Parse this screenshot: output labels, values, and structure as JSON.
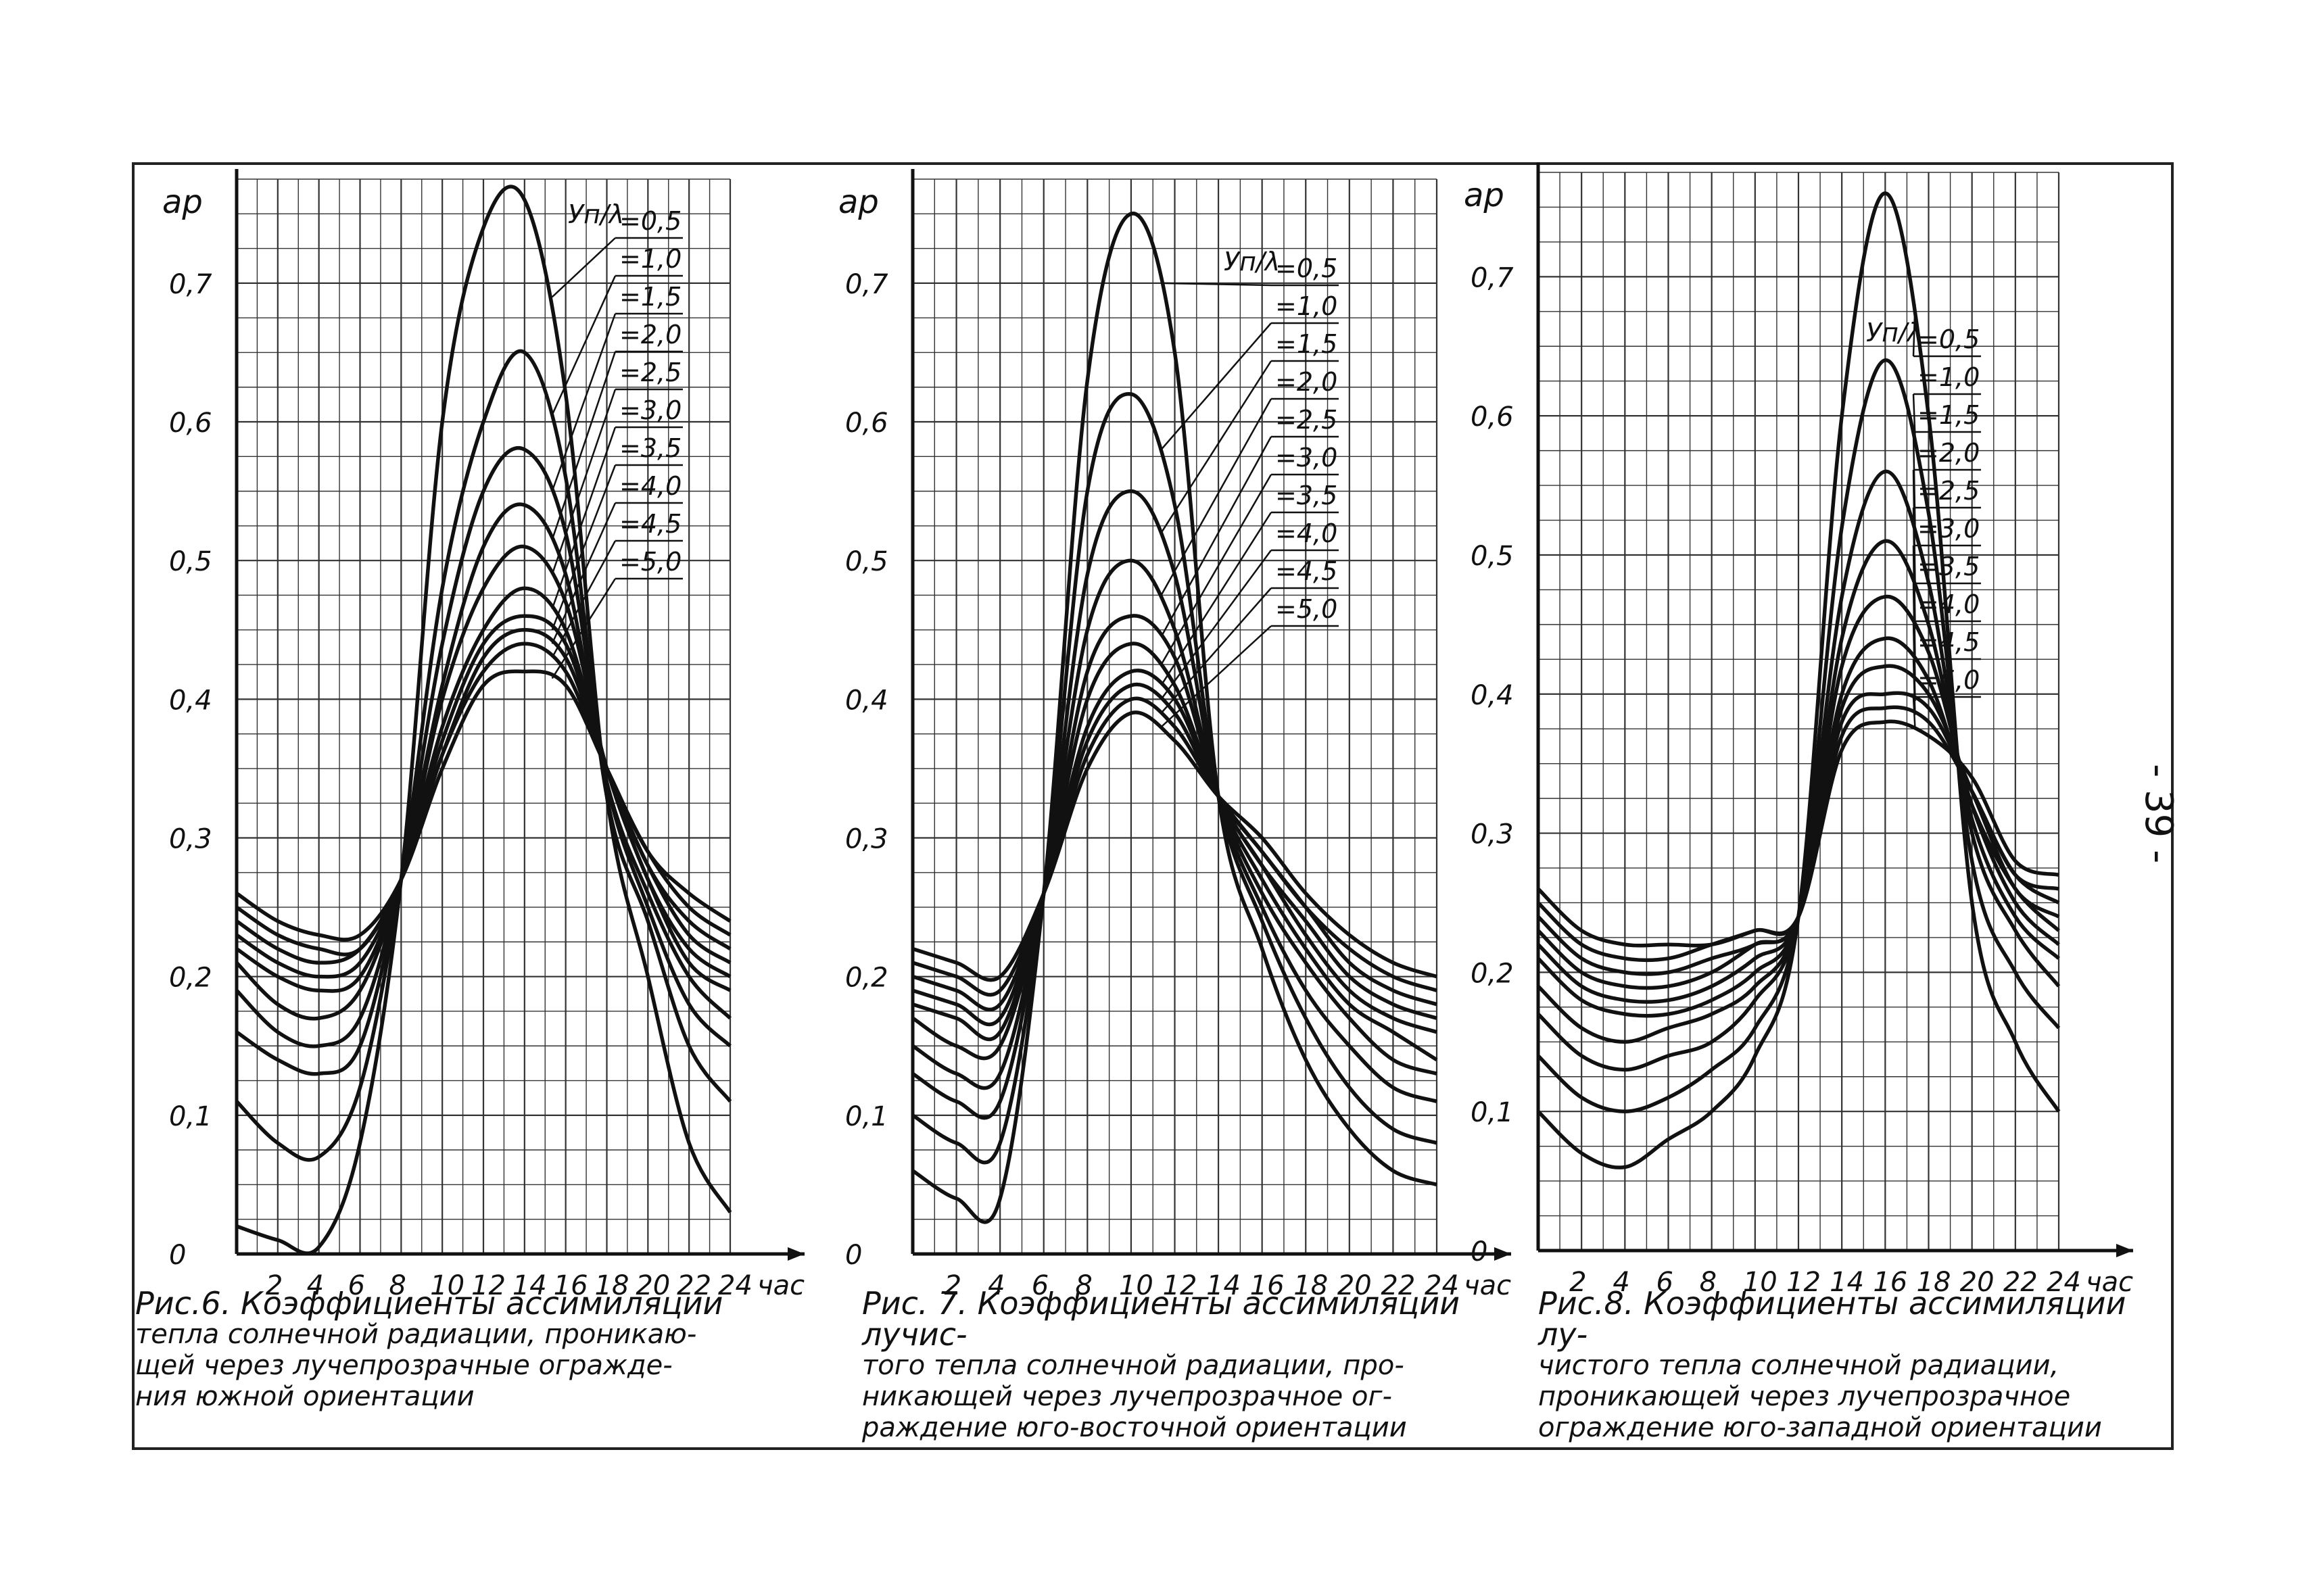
{
  "page_number": "- 39 -",
  "charts_common": {
    "y_ticks": [
      "0",
      "0,1",
      "0,2",
      "0,3",
      "0,4",
      "0,5",
      "0,6",
      "0,7"
    ],
    "x_ticks": [
      "2",
      "4",
      "6",
      "8",
      "10",
      "12",
      "14",
      "16",
      "18",
      "20",
      "22",
      "24"
    ],
    "x_unit": "час",
    "legend_symbol": "Уп/λ",
    "legend_labels": [
      "=0,5",
      "=1,0",
      "=1,5",
      "=2,0",
      "=2,5",
      "=3,0",
      "=3,5",
      "=4,0",
      "=4,5",
      "=5,0"
    ]
  },
  "chart_data": [
    {
      "type": "line",
      "caption_title": "Рис.6. Коэффициенты ассимиляции",
      "caption_lines": [
        "тепла солнечной радиации, проникаю-",
        "щей через лучепрозрачные огражде-",
        "ния южной ориентации"
      ],
      "ylabel": "ар",
      "x_unit": "час",
      "xlim": [
        0,
        24
      ],
      "ylim": [
        0,
        0.75
      ],
      "grid": true,
      "legend_position": "top-right",
      "x": [
        0,
        2,
        4,
        6,
        8,
        10,
        12,
        14,
        16,
        18,
        20,
        22,
        24
      ],
      "series": [
        {
          "name": "=0,5",
          "values": [
            0.02,
            0.01,
            0.005,
            0.08,
            0.27,
            0.6,
            0.74,
            0.76,
            0.62,
            0.33,
            0.2,
            0.08,
            0.03
          ]
        },
        {
          "name": "=1,0",
          "values": [
            0.11,
            0.08,
            0.07,
            0.12,
            0.27,
            0.48,
            0.6,
            0.65,
            0.56,
            0.33,
            0.24,
            0.15,
            0.11
          ]
        },
        {
          "name": "=1,5",
          "values": [
            0.16,
            0.14,
            0.13,
            0.15,
            0.27,
            0.44,
            0.55,
            0.58,
            0.52,
            0.34,
            0.25,
            0.18,
            0.15
          ]
        },
        {
          "name": "=2,0",
          "values": [
            0.19,
            0.16,
            0.15,
            0.17,
            0.27,
            0.41,
            0.51,
            0.54,
            0.49,
            0.34,
            0.26,
            0.2,
            0.17
          ]
        },
        {
          "name": "=2,5",
          "values": [
            0.21,
            0.18,
            0.17,
            0.19,
            0.27,
            0.4,
            0.48,
            0.51,
            0.47,
            0.35,
            0.27,
            0.21,
            0.19
          ]
        },
        {
          "name": "=3,0",
          "values": [
            0.22,
            0.2,
            0.19,
            0.2,
            0.27,
            0.38,
            0.45,
            0.48,
            0.45,
            0.35,
            0.27,
            0.22,
            0.2
          ]
        },
        {
          "name": "=3,5",
          "values": [
            0.23,
            0.21,
            0.2,
            0.21,
            0.27,
            0.37,
            0.44,
            0.46,
            0.44,
            0.35,
            0.28,
            0.23,
            0.21
          ]
        },
        {
          "name": "=4,0",
          "values": [
            0.24,
            0.22,
            0.21,
            0.22,
            0.27,
            0.36,
            0.43,
            0.45,
            0.43,
            0.35,
            0.28,
            0.24,
            0.22
          ]
        },
        {
          "name": "=4,5",
          "values": [
            0.25,
            0.23,
            0.22,
            0.22,
            0.27,
            0.36,
            0.42,
            0.44,
            0.42,
            0.35,
            0.29,
            0.25,
            0.23
          ]
        },
        {
          "name": "=5,0",
          "values": [
            0.26,
            0.24,
            0.23,
            0.23,
            0.27,
            0.35,
            0.41,
            0.42,
            0.41,
            0.35,
            0.29,
            0.26,
            0.24
          ]
        }
      ]
    },
    {
      "type": "line",
      "caption_title": "Рис. 7. Коэффициенты ассимиляции лучис-",
      "caption_lines": [
        "того тепла солнечной радиации, про-",
        "никающей через лучепрозрачное ог-",
        "раждение юго-восточной ориентации"
      ],
      "ylabel": "ар",
      "x_unit": "час",
      "xlim": [
        0,
        24
      ],
      "ylim": [
        0,
        0.75
      ],
      "grid": true,
      "legend_position": "top-right",
      "x": [
        0,
        2,
        4,
        6,
        8,
        10,
        12,
        14,
        16,
        18,
        20,
        22,
        24
      ],
      "series": [
        {
          "name": "=0,5",
          "values": [
            0.06,
            0.04,
            0.04,
            0.26,
            0.63,
            0.75,
            0.65,
            0.33,
            0.22,
            0.14,
            0.09,
            0.06,
            0.05
          ]
        },
        {
          "name": "=1,0",
          "values": [
            0.1,
            0.08,
            0.08,
            0.26,
            0.55,
            0.62,
            0.54,
            0.33,
            0.24,
            0.17,
            0.12,
            0.09,
            0.08
          ]
        },
        {
          "name": "=1,5",
          "values": [
            0.13,
            0.11,
            0.11,
            0.26,
            0.49,
            0.55,
            0.49,
            0.33,
            0.25,
            0.19,
            0.15,
            0.12,
            0.11
          ]
        },
        {
          "name": "=2,0",
          "values": [
            0.15,
            0.13,
            0.13,
            0.26,
            0.45,
            0.5,
            0.45,
            0.33,
            0.26,
            0.21,
            0.17,
            0.14,
            0.13
          ]
        },
        {
          "name": "=2,5",
          "values": [
            0.17,
            0.15,
            0.15,
            0.26,
            0.42,
            0.46,
            0.43,
            0.33,
            0.27,
            0.22,
            0.18,
            0.16,
            0.14
          ]
        },
        {
          "name": "=3,0",
          "values": [
            0.18,
            0.17,
            0.16,
            0.26,
            0.4,
            0.44,
            0.41,
            0.33,
            0.28,
            0.23,
            0.19,
            0.17,
            0.16
          ]
        },
        {
          "name": "=3,5",
          "values": [
            0.19,
            0.18,
            0.17,
            0.26,
            0.38,
            0.42,
            0.4,
            0.33,
            0.28,
            0.24,
            0.2,
            0.18,
            0.17
          ]
        },
        {
          "name": "=4,0",
          "values": [
            0.2,
            0.19,
            0.18,
            0.26,
            0.37,
            0.41,
            0.39,
            0.33,
            0.29,
            0.25,
            0.21,
            0.19,
            0.18
          ]
        },
        {
          "name": "=4,5",
          "values": [
            0.21,
            0.2,
            0.19,
            0.26,
            0.36,
            0.4,
            0.38,
            0.33,
            0.29,
            0.25,
            0.22,
            0.2,
            0.19
          ]
        },
        {
          "name": "=5,0",
          "values": [
            0.22,
            0.21,
            0.2,
            0.26,
            0.35,
            0.39,
            0.37,
            0.33,
            0.3,
            0.26,
            0.23,
            0.21,
            0.2
          ]
        }
      ]
    },
    {
      "type": "line",
      "caption_title": "Рис.8. Коэффициенты ассимиляции лу-",
      "caption_lines": [
        "чистого тепла солнечной радиации,",
        "проникающей через лучепрозрачное",
        "ограждение юго-западной ориентации"
      ],
      "ylabel": "ар",
      "x_unit": "час",
      "xlim": [
        0,
        24
      ],
      "ylim": [
        0,
        0.75
      ],
      "grid": true,
      "legend_position": "top-right",
      "x": [
        0,
        2,
        4,
        6,
        8,
        10,
        12,
        14,
        16,
        18,
        20,
        22,
        24
      ],
      "series": [
        {
          "name": "=0,5",
          "values": [
            0.1,
            0.07,
            0.06,
            0.08,
            0.1,
            0.14,
            0.24,
            0.6,
            0.76,
            0.6,
            0.25,
            0.15,
            0.1
          ]
        },
        {
          "name": "=1,0",
          "values": [
            0.14,
            0.11,
            0.1,
            0.11,
            0.13,
            0.16,
            0.24,
            0.52,
            0.64,
            0.53,
            0.28,
            0.2,
            0.16
          ]
        },
        {
          "name": "=1,5",
          "values": [
            0.17,
            0.14,
            0.13,
            0.14,
            0.15,
            0.18,
            0.24,
            0.47,
            0.56,
            0.48,
            0.3,
            0.23,
            0.19
          ]
        },
        {
          "name": "=2,0",
          "values": [
            0.19,
            0.16,
            0.15,
            0.16,
            0.17,
            0.19,
            0.24,
            0.44,
            0.51,
            0.45,
            0.31,
            0.24,
            0.21
          ]
        },
        {
          "name": "=2,5",
          "values": [
            0.21,
            0.18,
            0.17,
            0.17,
            0.18,
            0.2,
            0.24,
            0.42,
            0.47,
            0.43,
            0.32,
            0.25,
            0.22
          ]
        },
        {
          "name": "=3,0",
          "values": [
            0.22,
            0.19,
            0.18,
            0.18,
            0.19,
            0.21,
            0.24,
            0.4,
            0.44,
            0.41,
            0.32,
            0.26,
            0.23
          ]
        },
        {
          "name": "=3,5",
          "values": [
            0.23,
            0.2,
            0.19,
            0.19,
            0.2,
            0.22,
            0.24,
            0.39,
            0.42,
            0.4,
            0.33,
            0.26,
            0.24
          ]
        },
        {
          "name": "=4,0",
          "values": [
            0.24,
            0.21,
            0.2,
            0.2,
            0.21,
            0.22,
            0.24,
            0.38,
            0.4,
            0.39,
            0.33,
            0.27,
            0.25
          ]
        },
        {
          "name": "=4,5",
          "values": [
            0.25,
            0.22,
            0.21,
            0.21,
            0.22,
            0.23,
            0.24,
            0.37,
            0.39,
            0.38,
            0.33,
            0.27,
            0.26
          ]
        },
        {
          "name": "=5,0",
          "values": [
            0.26,
            0.23,
            0.22,
            0.22,
            0.22,
            0.23,
            0.24,
            0.36,
            0.38,
            0.37,
            0.34,
            0.28,
            0.27
          ]
        }
      ]
    }
  ]
}
